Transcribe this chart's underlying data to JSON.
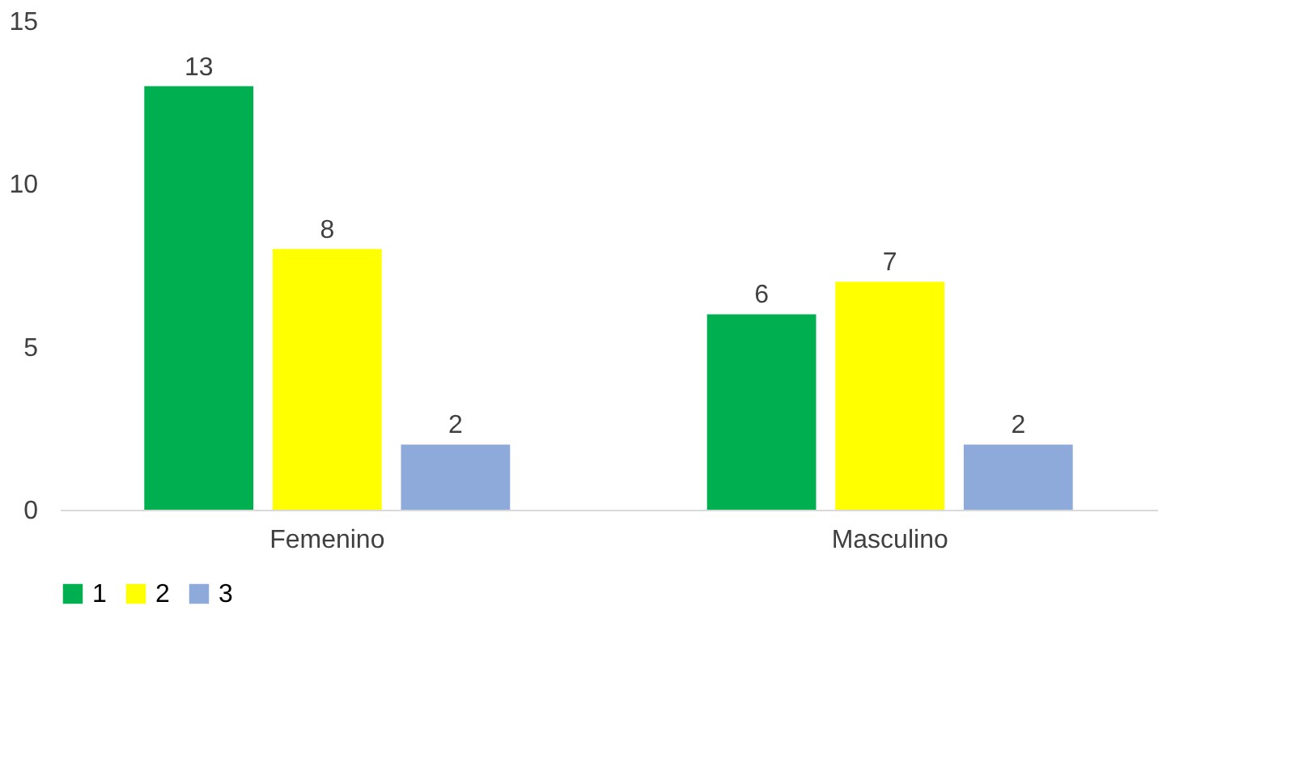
{
  "chart_data": {
    "type": "bar",
    "categories": [
      "Femenino",
      "Masculino"
    ],
    "series": [
      {
        "name": "1",
        "color": "#00b050",
        "values": [
          13,
          6
        ]
      },
      {
        "name": "2",
        "color": "#ffff00",
        "values": [
          8,
          7
        ]
      },
      {
        "name": "3",
        "color": "#8eaadb",
        "values": [
          2,
          2
        ]
      }
    ],
    "ylim": [
      0,
      15
    ],
    "yticks": [
      0,
      5,
      10,
      15
    ],
    "grid": false,
    "legend": "bottom",
    "data_labels": true
  }
}
